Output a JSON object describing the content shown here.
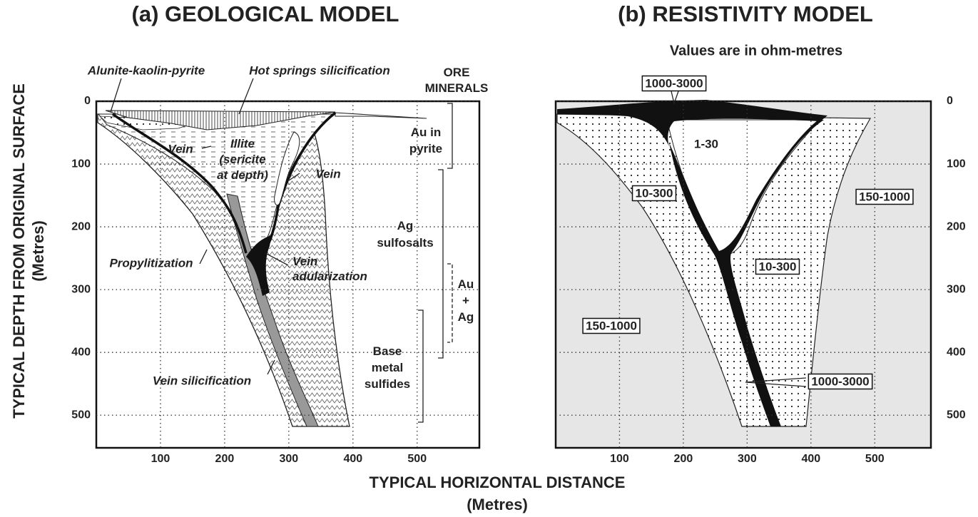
{
  "panels": [
    {
      "title": "(a) GEOLOGICAL MODEL",
      "xlim": [
        0,
        597
      ],
      "ylim": [
        0,
        552
      ],
      "xticks": [
        100,
        200,
        300,
        400,
        500
      ],
      "yticks": [
        0,
        100,
        200,
        300,
        400,
        500
      ],
      "labels": [
        "Alunite-kaolin-pyrite",
        "Hot springs silicification",
        [
          "ORE",
          "MINERALS"
        ],
        [
          "Au in",
          "pyrite"
        ],
        "Vein",
        [
          "Illite",
          "(sericite",
          "at depth)"
        ],
        "Vein",
        [
          "Ag",
          "sulfosalts"
        ],
        [
          "Au",
          "+",
          "Ag"
        ],
        "Propylitization",
        [
          "Vein",
          "adularization"
        ],
        [
          "Base",
          "metal",
          "sulfides"
        ],
        "Vein silicification"
      ]
    },
    {
      "title": "(b) RESISTIVITY MODEL",
      "subtitle": "Values are in ohm-metres",
      "xlim": [
        0,
        588
      ],
      "ylim": [
        0,
        552
      ],
      "xticks": [
        100,
        200,
        300,
        400,
        500
      ],
      "yticks": [
        0,
        100,
        200,
        300,
        400,
        500
      ],
      "labels": [
        "1000-3000",
        "1-30",
        "10-300",
        "150-1000",
        "10-300",
        "150-1000",
        "1000-3000"
      ]
    }
  ],
  "y_axis_title": [
    "TYPICAL DEPTH FROM ORIGINAL SURFACE",
    "(Metres)"
  ],
  "x_axis_title": [
    "TYPICAL HORIZONTAL DISTANCE",
    "(Metres)"
  ]
}
